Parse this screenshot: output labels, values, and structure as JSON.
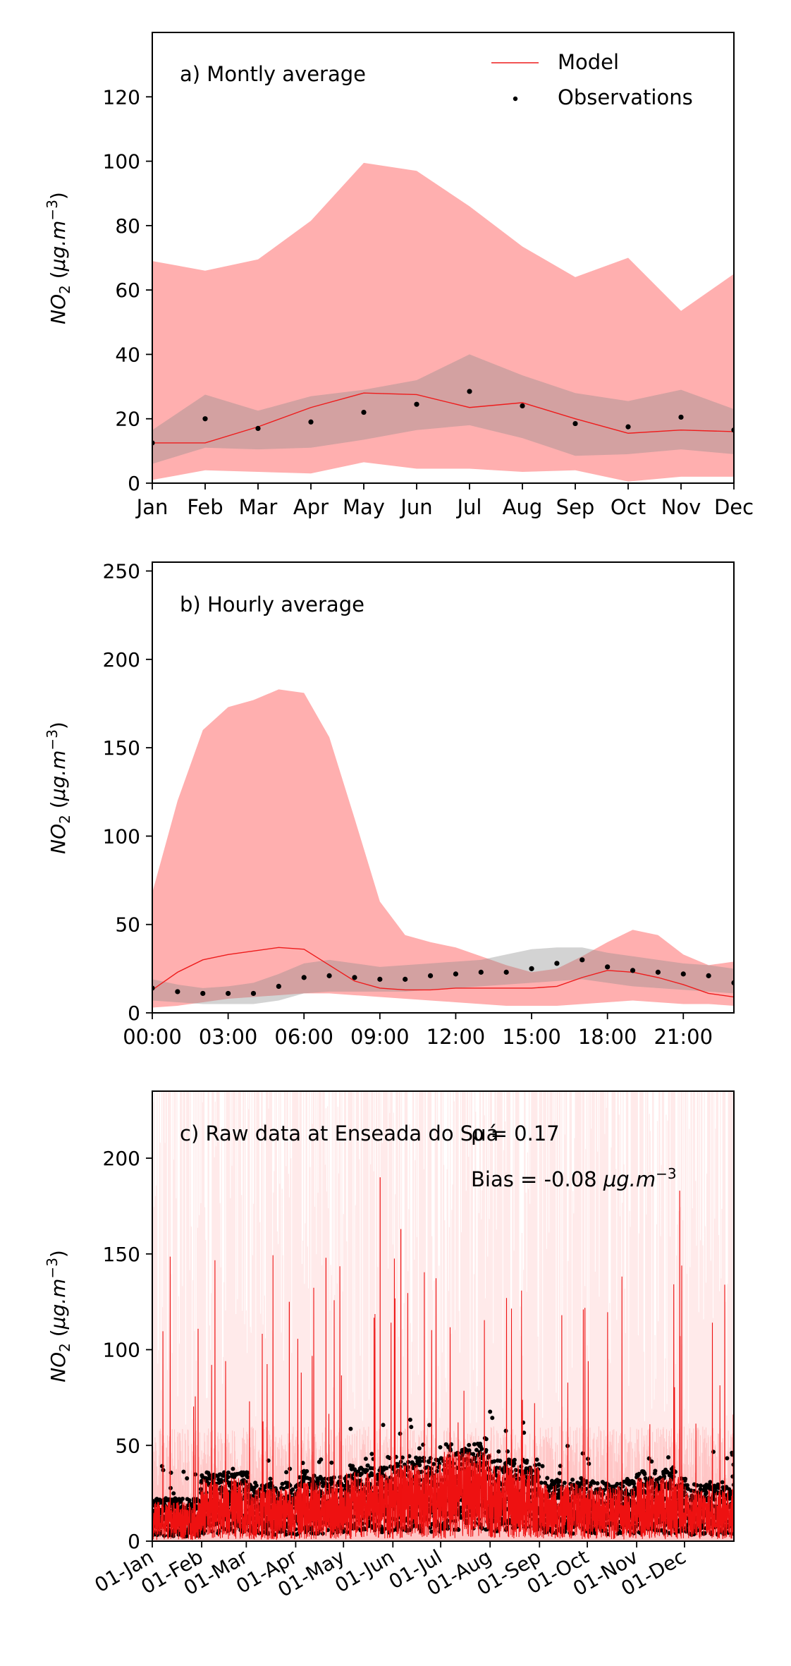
{
  "chart_data": [
    {
      "type": "line",
      "panel_label": "a) Montly average",
      "ylabel": "NO2 (μg.m⁻³)",
      "ylim": [
        0,
        140
      ],
      "yticks": [
        0,
        20,
        40,
        60,
        80,
        100,
        120
      ],
      "categories": [
        "Jan",
        "Feb",
        "Mar",
        "Apr",
        "May",
        "Jun",
        "Jul",
        "Aug",
        "Sep",
        "Oct",
        "Nov",
        "Dec"
      ],
      "legend": [
        "Model",
        "Observations"
      ],
      "legend_position": "top-right",
      "series": [
        {
          "name": "Model",
          "kind": "line",
          "color": "#ee1c1c",
          "values": [
            12.5,
            12.5,
            17.5,
            23.5,
            28,
            27.5,
            23.5,
            25,
            20,
            15.5,
            16.5,
            16
          ]
        },
        {
          "name": "Observations",
          "kind": "points",
          "color": "#000000",
          "values": [
            12.5,
            20,
            17,
            19,
            22,
            24.5,
            28.5,
            24,
            18.5,
            17.5,
            20.5,
            16.5
          ]
        }
      ],
      "bands": [
        {
          "color": "#ff9999",
          "opacity": 0.78,
          "upper": [
            69,
            66,
            69.5,
            81.5,
            99.5,
            97,
            86,
            73.5,
            64,
            70,
            53.5,
            65
          ],
          "lower": [
            1,
            4,
            3.5,
            3,
            6.5,
            4.5,
            4.5,
            3.5,
            4,
            0.5,
            2,
            2
          ]
        },
        {
          "color": "#8c8c8c",
          "opacity": 0.38,
          "upper": [
            16.5,
            27.5,
            22.5,
            27,
            29,
            32,
            40,
            33.5,
            28,
            25.5,
            29,
            23
          ],
          "lower": [
            6,
            11,
            10.5,
            11,
            13.5,
            16.5,
            18,
            14,
            8.5,
            9,
            10.5,
            9
          ]
        }
      ]
    },
    {
      "type": "line",
      "panel_label": "b) Hourly average",
      "ylabel": "NO2 (μg.m⁻³)",
      "ylim": [
        0,
        255
      ],
      "yticks": [
        0,
        50,
        100,
        150,
        200,
        250
      ],
      "x": [
        0,
        1,
        2,
        3,
        4,
        5,
        6,
        7,
        8,
        9,
        10,
        11,
        12,
        13,
        14,
        15,
        16,
        17,
        18,
        19,
        20,
        21,
        22,
        23
      ],
      "xticks": [
        "00:00",
        "03:00",
        "06:00",
        "09:00",
        "12:00",
        "15:00",
        "18:00",
        "21:00"
      ],
      "series": [
        {
          "name": "Model",
          "kind": "line",
          "color": "#ee1c1c",
          "values": [
            13,
            23,
            30,
            33,
            35,
            37,
            36,
            27,
            18,
            14,
            13,
            13,
            14,
            14,
            14,
            14,
            15,
            20,
            24,
            23,
            20,
            16,
            11,
            9
          ]
        },
        {
          "name": "Observations",
          "kind": "points",
          "color": "#000000",
          "values": [
            14,
            12,
            11,
            11,
            11,
            15,
            20,
            21,
            20,
            19,
            19,
            21,
            22,
            23,
            23,
            25,
            28,
            30,
            26,
            24,
            23,
            22,
            21,
            17
          ]
        }
      ],
      "bands": [
        {
          "color": "#ff9999",
          "opacity": 0.78,
          "upper": [
            68,
            120,
            160,
            173,
            177,
            183,
            181,
            156,
            110,
            63,
            44,
            40,
            37,
            32,
            27,
            23,
            25,
            32,
            40,
            47,
            44,
            33,
            27,
            29
          ],
          "lower": [
            3,
            4,
            6,
            8,
            9,
            10,
            11,
            11,
            10,
            9,
            8,
            7,
            6,
            5,
            4,
            4,
            4,
            5,
            6,
            7,
            6,
            5,
            5,
            4
          ]
        },
        {
          "color": "#8c8c8c",
          "opacity": 0.38,
          "upper": [
            19,
            16,
            14,
            15,
            17,
            22,
            28,
            30,
            28,
            26,
            27,
            28,
            29,
            30,
            33,
            36,
            37,
            37,
            34,
            32,
            30,
            28,
            27,
            25
          ],
          "lower": [
            7,
            6,
            5,
            5,
            5,
            7,
            11,
            12,
            12,
            12,
            12,
            13,
            14,
            15,
            16,
            17,
            18,
            19,
            17,
            15,
            14,
            13,
            12,
            11
          ]
        }
      ]
    },
    {
      "type": "line",
      "panel_label": "c) Raw data at Enseada do Suá",
      "annotations": [
        "ρ = 0.17",
        "Bias = -0.08 μg.m⁻³"
      ],
      "ylabel": "NO2 (μg.m⁻³)",
      "ylim": [
        0,
        235
      ],
      "yticks": [
        0,
        50,
        100,
        150,
        200
      ],
      "xticks": [
        "01-Jan",
        "01-Feb",
        "01-Mar",
        "01-Apr",
        "01-May",
        "01-Jun",
        "01-Jul",
        "01-Aug",
        "01-Sep",
        "01-Oct",
        "01-Nov",
        "01-Dec"
      ],
      "series": [
        {
          "name": "Model",
          "kind": "line",
          "color": "#ee1c1c",
          "description": "hourly raw model values, mostly 0-60 with spikes to 190"
        },
        {
          "name": "Observations",
          "kind": "points",
          "color": "#000000",
          "description": "hourly raw observations, mostly 0-60, max ~68"
        }
      ]
    }
  ]
}
